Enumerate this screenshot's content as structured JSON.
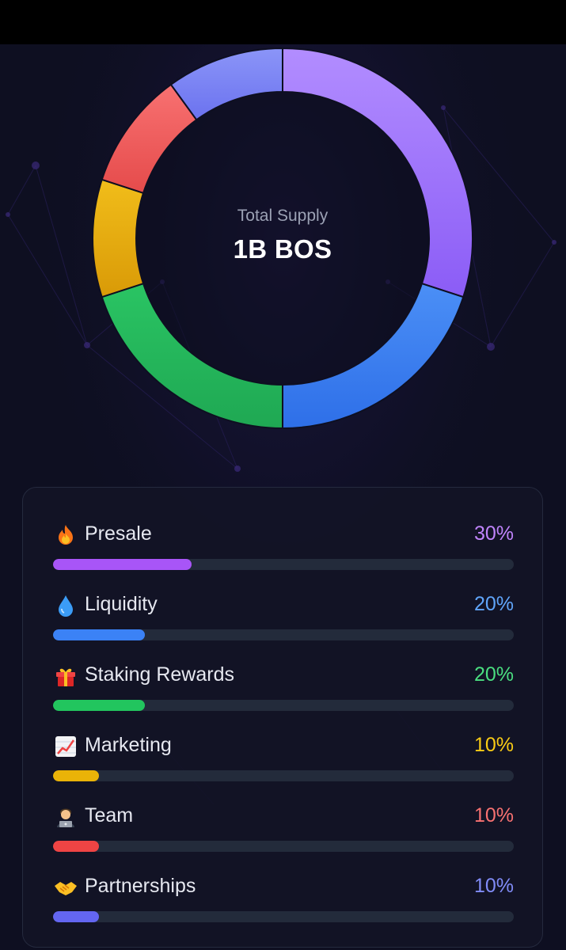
{
  "chart_data": {
    "type": "pie",
    "style": "donut",
    "center": {
      "label": "Total Supply",
      "value": "1B BOS"
    },
    "series": [
      {
        "name": "Presale",
        "emoji": "🔥",
        "value": 30,
        "value_label": "30%",
        "color": "#a855f7"
      },
      {
        "name": "Liquidity",
        "emoji": "💧",
        "value": 20,
        "value_label": "20%",
        "color": "#3b82f6"
      },
      {
        "name": "Staking Rewards",
        "emoji": "🎁",
        "value": 20,
        "value_label": "20%",
        "color": "#22c55e"
      },
      {
        "name": "Marketing",
        "emoji": "📈",
        "value": 10,
        "value_label": "10%",
        "color": "#eab308"
      },
      {
        "name": "Team",
        "emoji": "👨‍💻",
        "value": 10,
        "value_label": "10%",
        "color": "#ef4444"
      },
      {
        "name": "Partnerships",
        "emoji": "🤝",
        "value": 10,
        "value_label": "10%",
        "color": "#6366f1"
      }
    ],
    "legend_position": "bottom",
    "bar_max": 100
  },
  "colors": {
    "background": "#0e0f21",
    "top_bar": "#000000",
    "card_border": "#252a3e",
    "track": "#232b3b",
    "label_text": "#e6e8f0",
    "center_label": "#9ba1b4",
    "center_value": "#ffffff",
    "pct_presale": "#c084fc",
    "pct_liquidity": "#60a5fa",
    "pct_staking": "#4ade80",
    "pct_marketing": "#facc15",
    "pct_team": "#f87171",
    "pct_partnerships": "#818cf8"
  },
  "donut_gradients": [
    [
      "#b28dff",
      "#8b5cf6"
    ],
    [
      "#4b8ff6",
      "#2e6fe8"
    ],
    [
      "#2ac463",
      "#1fa853"
    ],
    [
      "#f1bd1a",
      "#d99a07"
    ],
    [
      "#f87171",
      "#e54b4b"
    ],
    [
      "#8b95f8",
      "#6b72ef"
    ]
  ],
  "pct_colors": [
    "#c084fc",
    "#60a5fa",
    "#4ade80",
    "#facc15",
    "#f87171",
    "#818cf8"
  ],
  "bar_colors": [
    "#a855f7",
    "#3b82f6",
    "#22c55e",
    "#eab308",
    "#ef4444",
    "#6366f1"
  ]
}
